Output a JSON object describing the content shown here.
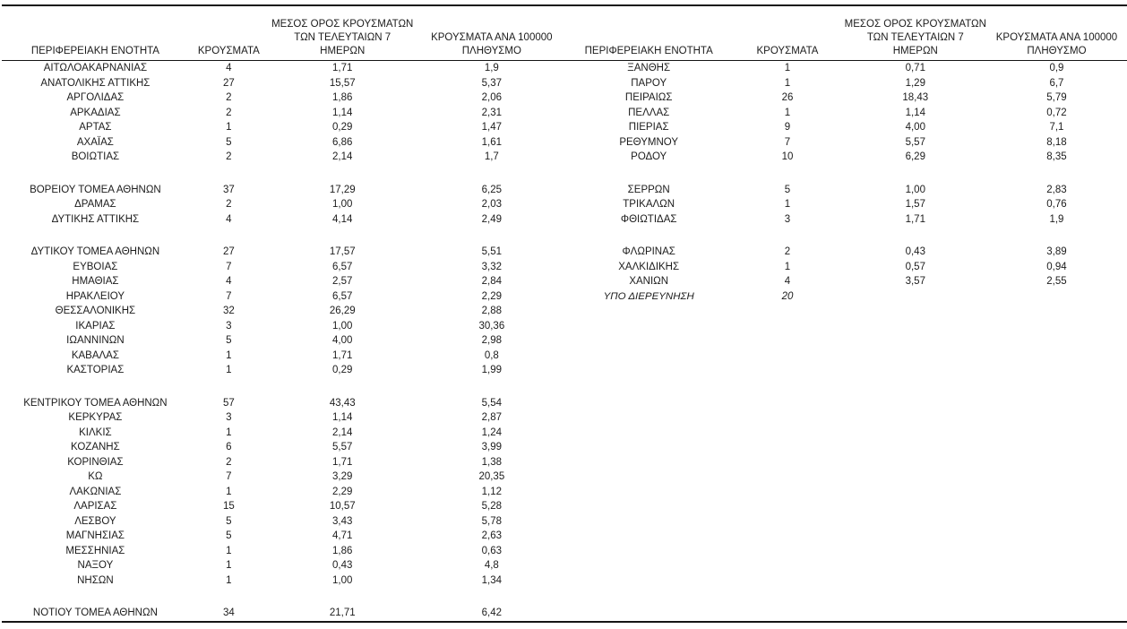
{
  "colors": {
    "background": "#ffffff",
    "text": "#1c1c1c",
    "line": "#151515"
  },
  "columns": {
    "region": "ΠΕΡΙΦΕΡΕΙΑΚΗ ΕΝΟΤΗΤΑ",
    "cases": "ΚΡΟΥΣΜΑΤΑ",
    "avg7_line1": "ΜΕΣΟΣ ΟΡΟΣ ΚΡΟΥΣΜΑΤΩΝ",
    "avg7_line2": "ΤΩΝ ΤΕΛΕΥΤΑΙΩΝ 7",
    "avg7_line3": "ΗΜΕΡΩΝ",
    "per100k_line1": "ΚΡΟΥΣΜΑΤΑ ΑΝΑ 100000",
    "per100k_line2": "ΠΛΗΘΥΣΜΟ"
  },
  "rows": [
    {
      "left": [
        "ΑΙΤΩΛΟΑΚΑΡΝΑΝΙΑΣ",
        "4",
        "1,71",
        "1,9"
      ],
      "right": [
        "ΞΑΝΘΗΣ",
        "1",
        "0,71",
        "0,9"
      ]
    },
    {
      "left": [
        "ΑΝΑΤΟΛΙΚΗΣ ΑΤΤΙΚΗΣ",
        "27",
        "15,57",
        "5,37"
      ],
      "right": [
        "ΠΑΡΟΥ",
        "1",
        "1,29",
        "6,7"
      ]
    },
    {
      "left": [
        "ΑΡΓΟΛΙΔΑΣ",
        "2",
        "1,86",
        "2,06"
      ],
      "right": [
        "ΠΕΙΡΑΙΩΣ",
        "26",
        "18,43",
        "5,79"
      ]
    },
    {
      "left": [
        "ΑΡΚΑΔΙΑΣ",
        "2",
        "1,14",
        "2,31"
      ],
      "right": [
        "ΠΕΛΛΑΣ",
        "1",
        "1,14",
        "0,72"
      ]
    },
    {
      "left": [
        "ΑΡΤΑΣ",
        "1",
        "0,29",
        "1,47"
      ],
      "right": [
        "ΠΙΕΡΙΑΣ",
        "9",
        "4,00",
        "7,1"
      ]
    },
    {
      "left": [
        "ΑΧΑΪΑΣ",
        "5",
        "6,86",
        "1,61"
      ],
      "right": [
        "ΡΕΘΥΜΝΟΥ",
        "7",
        "5,57",
        "8,18"
      ]
    },
    {
      "left": [
        "ΒΟΙΩΤΙΑΣ",
        "2",
        "2,14",
        "1,7"
      ],
      "right": [
        "ΡΟΔΟΥ",
        "10",
        "6,29",
        "8,35"
      ]
    },
    {
      "spacer": true
    },
    {
      "left": [
        "ΒΟΡΕΙΟΥ ΤΟΜΕΑ ΑΘΗΝΩΝ",
        "37",
        "17,29",
        "6,25"
      ],
      "right": [
        "ΣΕΡΡΩΝ",
        "5",
        "1,00",
        "2,83"
      ]
    },
    {
      "left": [
        "ΔΡΑΜΑΣ",
        "2",
        "1,00",
        "2,03"
      ],
      "right": [
        "ΤΡΙΚΑΛΩΝ",
        "1",
        "1,57",
        "0,76"
      ]
    },
    {
      "left": [
        "ΔΥΤΙΚΗΣ ΑΤΤΙΚΗΣ",
        "4",
        "4,14",
        "2,49"
      ],
      "right": [
        "ΦΘΙΩΤΙΔΑΣ",
        "3",
        "1,71",
        "1,9"
      ]
    },
    {
      "spacer": true
    },
    {
      "left": [
        "ΔΥΤΙΚΟΥ ΤΟΜΕΑ ΑΘΗΝΩΝ",
        "27",
        "17,57",
        "5,51"
      ],
      "right": [
        "ΦΛΩΡΙΝΑΣ",
        "2",
        "0,43",
        "3,89"
      ]
    },
    {
      "left": [
        "ΕΥΒΟΙΑΣ",
        "7",
        "6,57",
        "3,32"
      ],
      "right": [
        "ΧΑΛΚΙΔΙΚΗΣ",
        "1",
        "0,57",
        "0,94"
      ]
    },
    {
      "left": [
        "ΗΜΑΘΙΑΣ",
        "4",
        "2,57",
        "2,84"
      ],
      "right": [
        "ΧΑΝΙΩΝ",
        "4",
        "3,57",
        "2,55"
      ]
    },
    {
      "left": [
        "ΗΡΑΚΛΕΙΟΥ",
        "7",
        "6,57",
        "2,29"
      ],
      "right": [
        "ΥΠΟ ΔΙΕΡΕΥΝΗΣΗ",
        "20",
        "",
        ""
      ],
      "right_italic": true
    },
    {
      "left": [
        "ΘΕΣΣΑΛΟΝΙΚΗΣ",
        "32",
        "26,29",
        "2,88"
      ],
      "right": null
    },
    {
      "left": [
        "ΙΚΑΡΙΑΣ",
        "3",
        "1,00",
        "30,36"
      ],
      "right": null
    },
    {
      "left": [
        "ΙΩΑΝΝΙΝΩΝ",
        "5",
        "4,00",
        "2,98"
      ],
      "right": null
    },
    {
      "left": [
        "ΚΑΒΑΛΑΣ",
        "1",
        "1,71",
        "0,8"
      ],
      "right": null
    },
    {
      "left": [
        "ΚΑΣΤΟΡΙΑΣ",
        "1",
        "0,29",
        "1,99"
      ],
      "right": null
    },
    {
      "spacer": true
    },
    {
      "left": [
        "ΚΕΝΤΡΙΚΟΥ ΤΟΜΕΑ ΑΘΗΝΩΝ",
        "57",
        "43,43",
        "5,54"
      ],
      "right": null
    },
    {
      "left": [
        "ΚΕΡΚΥΡΑΣ",
        "3",
        "1,14",
        "2,87"
      ],
      "right": null
    },
    {
      "left": [
        "ΚΙΛΚΙΣ",
        "1",
        "2,14",
        "1,24"
      ],
      "right": null
    },
    {
      "left": [
        "ΚΟΖΑΝΗΣ",
        "6",
        "5,57",
        "3,99"
      ],
      "right": null
    },
    {
      "left": [
        "ΚΟΡΙΝΘΙΑΣ",
        "2",
        "1,71",
        "1,38"
      ],
      "right": null
    },
    {
      "left": [
        "ΚΩ",
        "7",
        "3,29",
        "20,35"
      ],
      "right": null
    },
    {
      "left": [
        "ΛΑΚΩΝΙΑΣ",
        "1",
        "2,29",
        "1,12"
      ],
      "right": null
    },
    {
      "left": [
        "ΛΑΡΙΣΑΣ",
        "15",
        "10,57",
        "5,28"
      ],
      "right": null
    },
    {
      "left": [
        "ΛΕΣΒΟΥ",
        "5",
        "3,43",
        "5,78"
      ],
      "right": null
    },
    {
      "left": [
        "ΜΑΓΝΗΣΙΑΣ",
        "5",
        "4,71",
        "2,63"
      ],
      "right": null
    },
    {
      "left": [
        "ΜΕΣΣΗΝΙΑΣ",
        "1",
        "1,86",
        "0,63"
      ],
      "right": null
    },
    {
      "left": [
        "ΝΑΞΟΥ",
        "1",
        "0,43",
        "4,8"
      ],
      "right": null
    },
    {
      "left": [
        "ΝΗΣΩΝ",
        "1",
        "1,00",
        "1,34"
      ],
      "right": null
    },
    {
      "spacer": true
    },
    {
      "left": [
        "ΝΟΤΙΟΥ ΤΟΜΕΑ ΑΘΗΝΩΝ",
        "34",
        "21,71",
        "6,42"
      ],
      "right": null
    }
  ]
}
